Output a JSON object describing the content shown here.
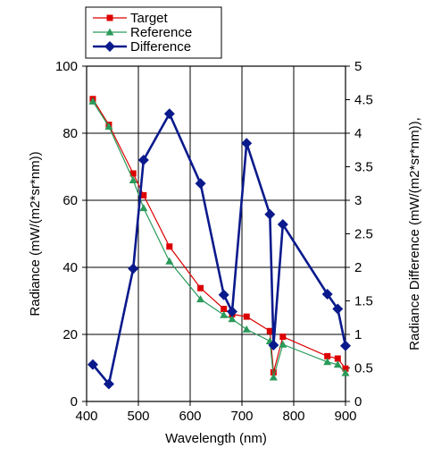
{
  "chart_data": {
    "type": "line",
    "xlabel": "Wavelength (nm)",
    "ylabel": "Radiance (mW/(m2*sr*nm))",
    "y2label": "Radiance Difference  (mW/(m2*sr*nm)),",
    "xlim": [
      400,
      900
    ],
    "ylim": [
      0,
      100
    ],
    "y2lim": [
      0,
      5
    ],
    "xticks": [
      "400",
      "500",
      "600",
      "700",
      "800",
      "900"
    ],
    "yticks": [
      "0",
      "20",
      "40",
      "60",
      "80",
      "100"
    ],
    "y2ticks": [
      "0",
      "0.5",
      "1",
      "1.5",
      "2",
      "2.5",
      "3",
      "3.5",
      "4",
      "4.5",
      "5"
    ],
    "grid": true,
    "legend_position": "top-left, above plot",
    "series": [
      {
        "name": "Target",
        "axis": "left",
        "color": "#dd0000",
        "marker": "square",
        "x": [
          412,
          443,
          490,
          510,
          560,
          620,
          665,
          681,
          709,
          754,
          761,
          779,
          865,
          885,
          900
        ],
        "y": [
          90.2,
          82.5,
          68.0,
          61.5,
          46.2,
          33.8,
          27.6,
          26.0,
          25.3,
          21.0,
          8.7,
          19.3,
          13.5,
          12.8,
          9.8
        ]
      },
      {
        "name": "Reference",
        "axis": "left",
        "color": "#2a9a5a",
        "marker": "triangle",
        "x": [
          412,
          443,
          490,
          510,
          560,
          620,
          665,
          681,
          709,
          754,
          761,
          779,
          865,
          885,
          900
        ],
        "y": [
          89.5,
          82.0,
          66.0,
          57.7,
          41.8,
          30.5,
          25.8,
          24.6,
          21.5,
          18.0,
          7.2,
          17.0,
          11.8,
          11.0,
          8.5
        ]
      },
      {
        "name": "Difference",
        "axis": "right",
        "color": "#0a1a8c",
        "marker": "diamond",
        "x": [
          412,
          443,
          490,
          510,
          560,
          620,
          665,
          681,
          709,
          754,
          761,
          779,
          865,
          885,
          900
        ],
        "y": [
          0.55,
          0.26,
          1.98,
          3.6,
          4.29,
          3.25,
          1.59,
          1.34,
          3.85,
          2.79,
          0.84,
          2.64,
          1.6,
          1.38,
          0.83
        ]
      }
    ]
  }
}
